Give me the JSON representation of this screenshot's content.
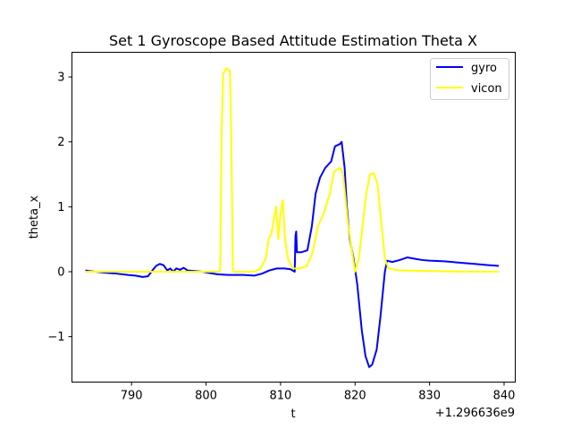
{
  "chart_data": {
    "type": "line",
    "title": "Set 1 Gyroscope Based Attitude Estimation Theta X",
    "xlabel": "t",
    "ylabel": "theta_x",
    "x_offset_label": "+1.296636e9",
    "xlim": [
      782.0,
      841.5
    ],
    "ylim": [
      -1.7,
      3.38
    ],
    "x_ticks": [
      790,
      800,
      810,
      820,
      830,
      840
    ],
    "x_tick_labels": [
      "790",
      "800",
      "810",
      "820",
      "830",
      "840"
    ],
    "y_ticks": [
      -1,
      0,
      1,
      2,
      3
    ],
    "y_tick_labels": [
      "−1",
      "0",
      "1",
      "2",
      "3"
    ],
    "grid": false,
    "legend_position": "top-right",
    "series": [
      {
        "name": "gyro",
        "color": "#0000ff",
        "points": [
          [
            783.8,
            0.02
          ],
          [
            784.3,
            0.01
          ],
          [
            786,
            -0.01
          ],
          [
            788,
            -0.03
          ],
          [
            789.5,
            -0.05
          ],
          [
            790.5,
            -0.06
          ],
          [
            791.5,
            -0.08
          ],
          [
            792.2,
            -0.07
          ],
          [
            792.8,
            0.02
          ],
          [
            793.3,
            0.09
          ],
          [
            793.8,
            0.12
          ],
          [
            794.3,
            0.1
          ],
          [
            794.8,
            0.02
          ],
          [
            795.2,
            0.05
          ],
          [
            795.6,
            0.0
          ],
          [
            796.0,
            0.05
          ],
          [
            796.5,
            0.03
          ],
          [
            797.0,
            0.06
          ],
          [
            797.5,
            0.02
          ],
          [
            798.5,
            0.01
          ],
          [
            799.5,
            0.0
          ],
          [
            800.5,
            -0.02
          ],
          [
            801.5,
            -0.04
          ],
          [
            803,
            -0.05
          ],
          [
            805,
            -0.05
          ],
          [
            806.5,
            -0.06
          ],
          [
            807.5,
            -0.03
          ],
          [
            808.5,
            0.02
          ],
          [
            809.5,
            0.05
          ],
          [
            810.5,
            0.05
          ],
          [
            811.3,
            0.04
          ],
          [
            811.9,
            0.0
          ],
          [
            812.0,
            0.55
          ],
          [
            812.1,
            0.62
          ],
          [
            812.2,
            0.3
          ],
          [
            812.8,
            0.3
          ],
          [
            813.6,
            0.33
          ],
          [
            814.2,
            0.7
          ],
          [
            814.7,
            1.2
          ],
          [
            815.3,
            1.45
          ],
          [
            816.0,
            1.6
          ],
          [
            816.8,
            1.7
          ],
          [
            817.3,
            1.93
          ],
          [
            818.0,
            1.97
          ],
          [
            818.2,
            2.0
          ],
          [
            818.6,
            1.6
          ],
          [
            818.9,
            1.0
          ],
          [
            819.3,
            0.5
          ],
          [
            819.8,
            0.2
          ],
          [
            820.3,
            -0.2
          ],
          [
            820.9,
            -0.9
          ],
          [
            821.4,
            -1.3
          ],
          [
            821.9,
            -1.47
          ],
          [
            822.3,
            -1.43
          ],
          [
            822.9,
            -1.2
          ],
          [
            823.4,
            -0.7
          ],
          [
            824.0,
            0.0
          ],
          [
            824.3,
            0.17
          ],
          [
            825,
            0.15
          ],
          [
            826,
            0.18
          ],
          [
            827,
            0.22
          ],
          [
            828,
            0.2
          ],
          [
            829,
            0.18
          ],
          [
            830,
            0.17
          ],
          [
            832,
            0.16
          ],
          [
            834,
            0.14
          ],
          [
            836,
            0.12
          ],
          [
            838,
            0.1
          ],
          [
            839.3,
            0.09
          ]
        ]
      },
      {
        "name": "vicon",
        "color": "#ffff00",
        "points": [
          [
            783.8,
            0.0
          ],
          [
            790,
            0.0
          ],
          [
            795,
            0.0
          ],
          [
            799,
            0.0
          ],
          [
            801.8,
            0.0
          ],
          [
            801.9,
            0.05
          ],
          [
            802.1,
            2.2
          ],
          [
            802.3,
            3.05
          ],
          [
            802.7,
            3.13
          ],
          [
            803.2,
            3.1
          ],
          [
            803.4,
            2.0
          ],
          [
            803.6,
            0.05
          ],
          [
            803.7,
            0.0
          ],
          [
            806.5,
            0.0
          ],
          [
            807.3,
            0.05
          ],
          [
            808.0,
            0.2
          ],
          [
            808.4,
            0.5
          ],
          [
            808.8,
            0.6
          ],
          [
            809.1,
            0.8
          ],
          [
            809.4,
            1.0
          ],
          [
            809.7,
            0.5
          ],
          [
            810.0,
            0.9
          ],
          [
            810.3,
            1.1
          ],
          [
            810.6,
            0.5
          ],
          [
            811.0,
            0.2
          ],
          [
            811.6,
            0.05
          ],
          [
            812.5,
            0.05
          ],
          [
            813.5,
            0.08
          ],
          [
            814.3,
            0.3
          ],
          [
            815.0,
            0.7
          ],
          [
            815.8,
            0.9
          ],
          [
            816.6,
            1.2
          ],
          [
            817.2,
            1.55
          ],
          [
            818.0,
            1.6
          ],
          [
            818.4,
            1.5
          ],
          [
            819.0,
            0.8
          ],
          [
            819.6,
            0.3
          ],
          [
            820.0,
            0.0
          ],
          [
            820.5,
            0.2
          ],
          [
            821.0,
            0.7
          ],
          [
            821.5,
            1.2
          ],
          [
            822.0,
            1.5
          ],
          [
            822.5,
            1.52
          ],
          [
            823.0,
            1.35
          ],
          [
            823.5,
            0.8
          ],
          [
            824.0,
            0.2
          ],
          [
            824.5,
            0.05
          ],
          [
            826,
            0.02
          ],
          [
            830,
            0.01
          ],
          [
            835,
            0.0
          ],
          [
            839.3,
            0.0
          ]
        ]
      }
    ]
  }
}
